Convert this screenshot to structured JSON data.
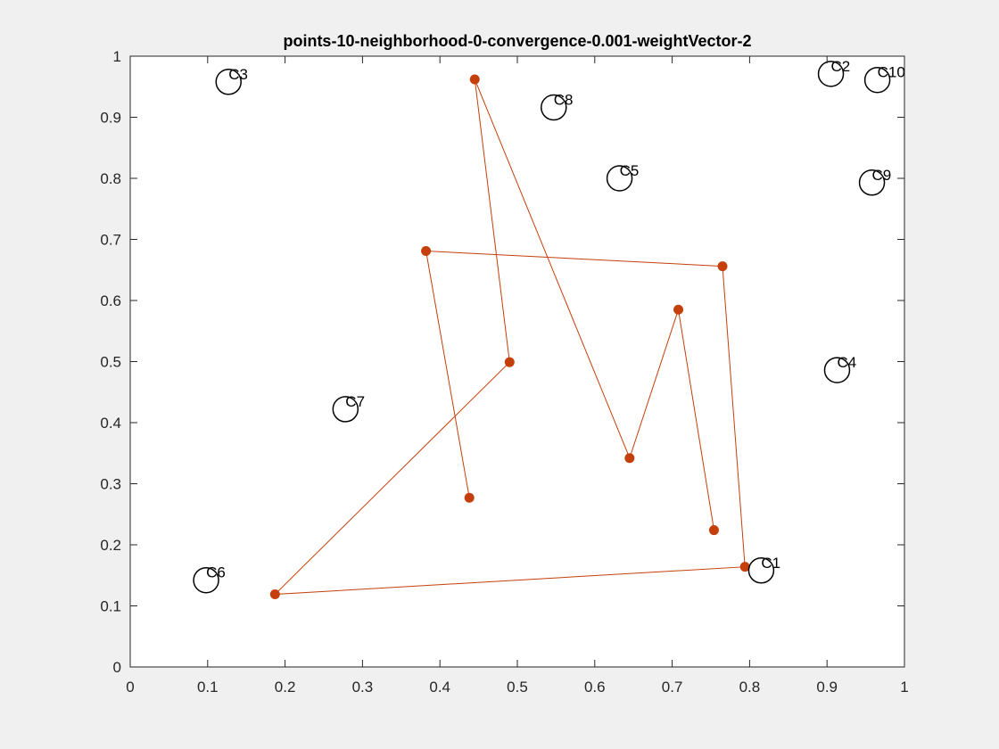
{
  "chart_data": {
    "type": "scatter",
    "title": "points-10-neighborhood-0-convergence-0.001-weightVector-2",
    "xlabel": "",
    "ylabel": "",
    "xlim": [
      0,
      1
    ],
    "ylim": [
      0,
      1
    ],
    "xticks": [
      0,
      0.1,
      0.2,
      0.3,
      0.4,
      0.5,
      0.6,
      0.7,
      0.8,
      0.9,
      1
    ],
    "xtick_labels": [
      "0",
      "0.1",
      "0.2",
      "0.3",
      "0.4",
      "0.5",
      "0.6",
      "0.7",
      "0.8",
      "0.9",
      "1"
    ],
    "yticks": [
      0,
      0.1,
      0.2,
      0.3,
      0.4,
      0.5,
      0.6,
      0.7,
      0.8,
      0.9,
      1
    ],
    "ytick_labels": [
      "0",
      "0.1",
      "0.2",
      "0.3",
      "0.4",
      "0.5",
      "0.6",
      "0.7",
      "0.8",
      "0.9",
      "1"
    ],
    "grid": false,
    "cities": [
      {
        "label": "C1",
        "x": 0.815,
        "y": 0.158
      },
      {
        "label": "C2",
        "x": 0.905,
        "y": 0.971
      },
      {
        "label": "C3",
        "x": 0.127,
        "y": 0.958
      },
      {
        "label": "C4",
        "x": 0.913,
        "y": 0.486
      },
      {
        "label": "C5",
        "x": 0.632,
        "y": 0.8
      },
      {
        "label": "C6",
        "x": 0.098,
        "y": 0.142
      },
      {
        "label": "C7",
        "x": 0.278,
        "y": 0.422
      },
      {
        "label": "C8",
        "x": 0.547,
        "y": 0.916
      },
      {
        "label": "C9",
        "x": 0.958,
        "y": 0.793
      },
      {
        "label": "C10",
        "x": 0.965,
        "y": 0.961
      }
    ],
    "path": {
      "color": "#c43f0b",
      "points": [
        {
          "x": 0.438,
          "y": 0.277
        },
        {
          "x": 0.382,
          "y": 0.681
        },
        {
          "x": 0.765,
          "y": 0.656
        },
        {
          "x": 0.794,
          "y": 0.164
        },
        {
          "x": 0.187,
          "y": 0.119
        },
        {
          "x": 0.49,
          "y": 0.499
        },
        {
          "x": 0.445,
          "y": 0.962
        },
        {
          "x": 0.645,
          "y": 0.342
        },
        {
          "x": 0.708,
          "y": 0.585
        },
        {
          "x": 0.754,
          "y": 0.224
        }
      ]
    }
  }
}
